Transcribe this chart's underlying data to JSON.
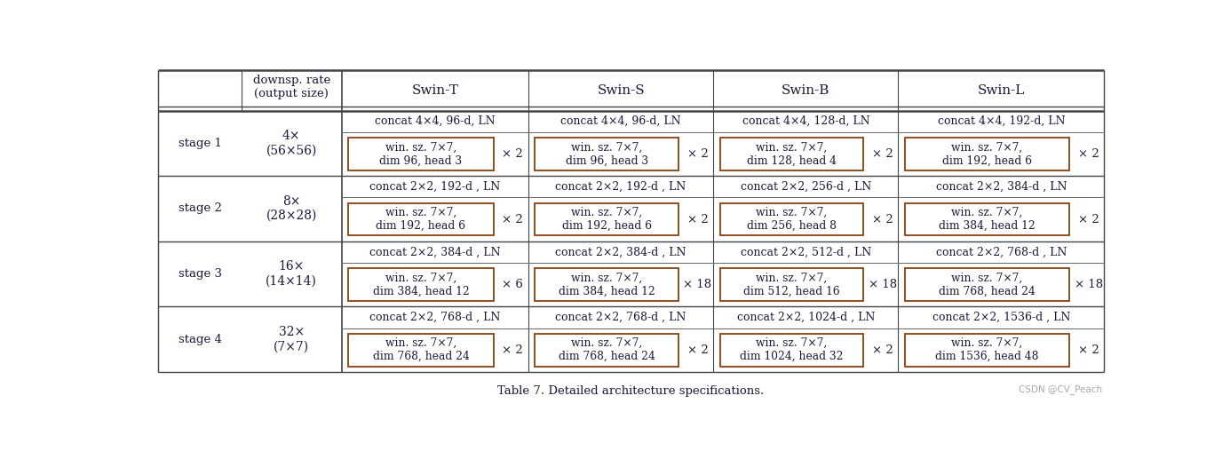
{
  "title": "Table 7. Detailed architecture specifications.",
  "watermark": "CSDN @CV_Peach",
  "stages": [
    {
      "stage": "stage 1",
      "rate": "4×\n(56×56)",
      "concat": [
        "concat 4×4, 96-d, LN",
        "concat 4×4, 96-d, LN",
        "concat 4×4, 128-d, LN",
        "concat 4×4, 192-d, LN"
      ],
      "win": [
        "win. sz. 7×7,\ndim 96, head 3",
        "win. sz. 7×7,\ndim 96, head 3",
        "win. sz. 7×7,\ndim 128, head 4",
        "win. sz. 7×7,\ndim 192, head 6"
      ],
      "repeat": [
        "× 2",
        "× 2",
        "× 2",
        "× 2"
      ]
    },
    {
      "stage": "stage 2",
      "rate": "8×\n(28×28)",
      "concat": [
        "concat 2×2, 192-d , LN",
        "concat 2×2, 192-d , LN",
        "concat 2×2, 256-d , LN",
        "concat 2×2, 384-d , LN"
      ],
      "win": [
        "win. sz. 7×7,\ndim 192, head 6",
        "win. sz. 7×7,\ndim 192, head 6",
        "win. sz. 7×7,\ndim 256, head 8",
        "win. sz. 7×7,\ndim 384, head 12"
      ],
      "repeat": [
        "× 2",
        "× 2",
        "× 2",
        "× 2"
      ]
    },
    {
      "stage": "stage 3",
      "rate": "16×\n(14×14)",
      "concat": [
        "concat 2×2, 384-d , LN",
        "concat 2×2, 384-d , LN",
        "concat 2×2, 512-d , LN",
        "concat 2×2, 768-d , LN"
      ],
      "win": [
        "win. sz. 7×7,\ndim 384, head 12",
        "win. sz. 7×7,\ndim 384, head 12",
        "win. sz. 7×7,\ndim 512, head 16",
        "win. sz. 7×7,\ndim 768, head 24"
      ],
      "repeat": [
        "× 6",
        "× 18",
        "× 18",
        "× 18"
      ]
    },
    {
      "stage": "stage 4",
      "rate": "32×\n(7×7)",
      "concat": [
        "concat 2×2, 768-d , LN",
        "concat 2×2, 768-d , LN",
        "concat 2×2, 1024-d , LN",
        "concat 2×2, 1536-d , LN"
      ],
      "win": [
        "win. sz. 7×7,\ndim 768, head 24",
        "win. sz. 7×7,\ndim 768, head 24",
        "win. sz. 7×7,\ndim 1024, head 32",
        "win. sz. 7×7,\ndim 1536, head 48"
      ],
      "repeat": [
        "× 2",
        "× 2",
        "× 2",
        "× 2"
      ]
    }
  ],
  "model_names": [
    "Swin-T",
    "Swin-S",
    "Swin-B",
    "Swin-L"
  ],
  "bg_color": "#ffffff",
  "text_color": "#1a1a3a",
  "box_color": "#8B4010",
  "line_color": "#444444",
  "font_size_header": 11,
  "font_size_body": 9.5,
  "font_size_rate": 10,
  "font_size_concat": 9,
  "font_size_win": 8.8,
  "font_size_repeat": 9.5,
  "font_size_title": 9.5,
  "font_size_watermark": 7.5
}
